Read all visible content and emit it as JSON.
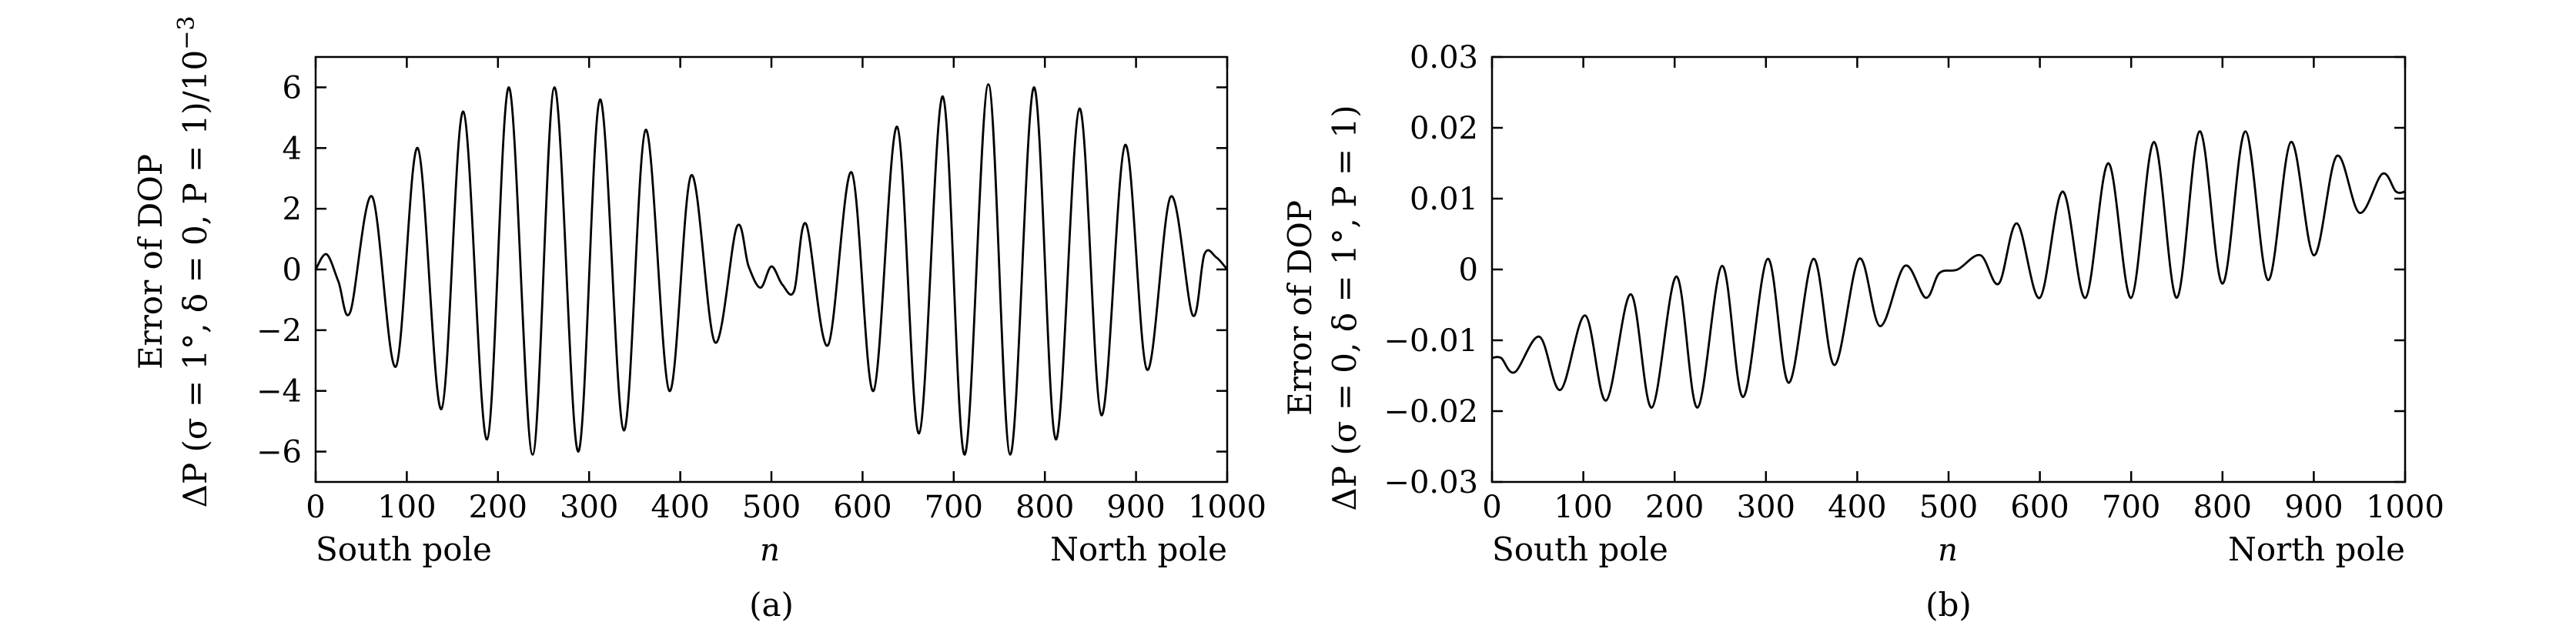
{
  "chart_data": [
    {
      "type": "line",
      "panel_label": "(a)",
      "xlabel": "n",
      "ylabel_line1": "Error of DOP",
      "ylabel_line2": "ΔP (σ = 1°, δ = 0, P = 1)/10",
      "ylabel_exponent": "−3",
      "x_left_label": "South pole",
      "x_right_label": "North pole",
      "xlim": [
        0,
        1000
      ],
      "ylim": [
        -7,
        7
      ],
      "xticks": [
        0,
        100,
        200,
        300,
        400,
        500,
        600,
        700,
        800,
        900,
        1000
      ],
      "xtick_labels": [
        "0",
        "100",
        "200",
        "300",
        "400",
        "500",
        "600",
        "700",
        "800",
        "900",
        "1000"
      ],
      "yticks": [
        -6,
        -4,
        -2,
        0,
        2,
        4,
        6
      ],
      "ytick_labels": [
        "−6",
        "−4",
        "−2",
        "0",
        "2",
        "4",
        "6"
      ],
      "grid": false,
      "series": [
        {
          "x": [
            0,
            12,
            25,
            38,
            62,
            88,
            112,
            138,
            162,
            188,
            212,
            238,
            262,
            288,
            312,
            338,
            362,
            388,
            412,
            438,
            462,
            475,
            488,
            500,
            512,
            525,
            538,
            562,
            588,
            612,
            638,
            662,
            688,
            712,
            738,
            762,
            788,
            812,
            838,
            862,
            888,
            912,
            938,
            962,
            975,
            988,
            1000
          ],
          "values": [
            0,
            0.5,
            -0.4,
            -1.4,
            2.4,
            -3.2,
            4.0,
            -4.6,
            5.2,
            -5.6,
            6.0,
            -6.1,
            6.0,
            -6.0,
            5.6,
            -5.3,
            4.6,
            -4.0,
            3.1,
            -2.4,
            1.4,
            0.1,
            -0.6,
            0.1,
            -0.5,
            -0.7,
            1.5,
            -2.5,
            3.2,
            -4.0,
            4.7,
            -5.4,
            5.7,
            -6.1,
            6.1,
            -6.1,
            6.0,
            -5.6,
            5.3,
            -4.8,
            4.1,
            -3.3,
            2.4,
            -1.5,
            0.5,
            0.4,
            0
          ]
        }
      ]
    },
    {
      "type": "line",
      "panel_label": "(b)",
      "xlabel": "n",
      "ylabel_line1": "Error of DOP",
      "ylabel_line2": "ΔP (σ = 0, δ = 1°, P = 1)",
      "ylabel_exponent": "",
      "x_left_label": "South pole",
      "x_right_label": "North pole",
      "xlim": [
        0,
        1000
      ],
      "ylim": [
        -0.03,
        0.03
      ],
      "xticks": [
        0,
        100,
        200,
        300,
        400,
        500,
        600,
        700,
        800,
        900,
        1000
      ],
      "xtick_labels": [
        "0",
        "100",
        "200",
        "300",
        "400",
        "500",
        "600",
        "700",
        "800",
        "900",
        "1000"
      ],
      "yticks": [
        -0.03,
        -0.02,
        -0.01,
        0,
        0.01,
        0.02,
        0.03
      ],
      "ytick_labels": [
        "−0.03",
        "−0.02",
        "−0.01",
        "0",
        "0.01",
        "0.02",
        "0.03"
      ],
      "grid": false,
      "series": [
        {
          "x": [
            0,
            10,
            25,
            52,
            75,
            102,
            125,
            152,
            175,
            202,
            225,
            252,
            275,
            302,
            325,
            352,
            375,
            402,
            425,
            452,
            475,
            490,
            510,
            535,
            555,
            575,
            600,
            625,
            650,
            675,
            700,
            725,
            750,
            775,
            800,
            825,
            850,
            875,
            900,
            925,
            950,
            975,
            990,
            1000
          ],
          "values": [
            -0.0125,
            -0.0125,
            -0.0145,
            -0.0095,
            -0.017,
            -0.0065,
            -0.0185,
            -0.0035,
            -0.0195,
            -0.001,
            -0.0195,
            0.0005,
            -0.018,
            0.0015,
            -0.016,
            0.0015,
            -0.0135,
            0.0015,
            -0.008,
            0.0005,
            -0.004,
            -0.0005,
            0.0,
            0.002,
            -0.002,
            0.0065,
            -0.004,
            0.011,
            -0.004,
            0.015,
            -0.004,
            0.018,
            -0.004,
            0.0195,
            -0.002,
            0.0195,
            -0.0015,
            0.018,
            0.002,
            0.016,
            0.008,
            0.0135,
            0.011,
            0.011
          ]
        }
      ]
    }
  ]
}
